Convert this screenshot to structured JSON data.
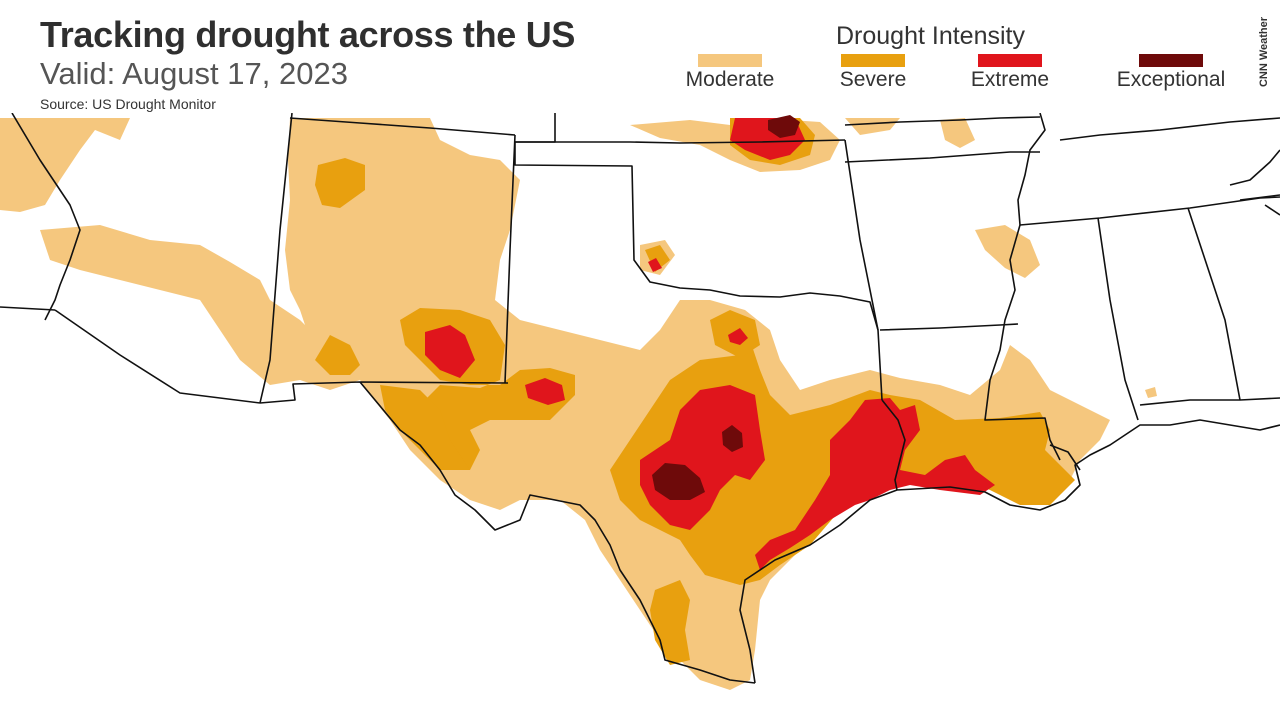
{
  "header": {
    "title": "Tracking drought across the US",
    "subtitle": "Valid: August 17, 2023",
    "source": "Source: US Drought Monitor",
    "credit": "CNN Weather"
  },
  "legend": {
    "title": "Drought Intensity",
    "items": [
      {
        "label": "Moderate",
        "color": "#f5c77e"
      },
      {
        "label": "Severe",
        "color": "#e8a00f"
      },
      {
        "label": "Extreme",
        "color": "#e0151c"
      },
      {
        "label": "Exceptional",
        "color": "#6e0a0a"
      }
    ]
  },
  "colors": {
    "background": "#ffffff",
    "state_borders": "#111111",
    "moderate": "#f5c77e",
    "severe": "#e8a00f",
    "extreme": "#e0151c",
    "exceptional": "#6e0a0a"
  }
}
